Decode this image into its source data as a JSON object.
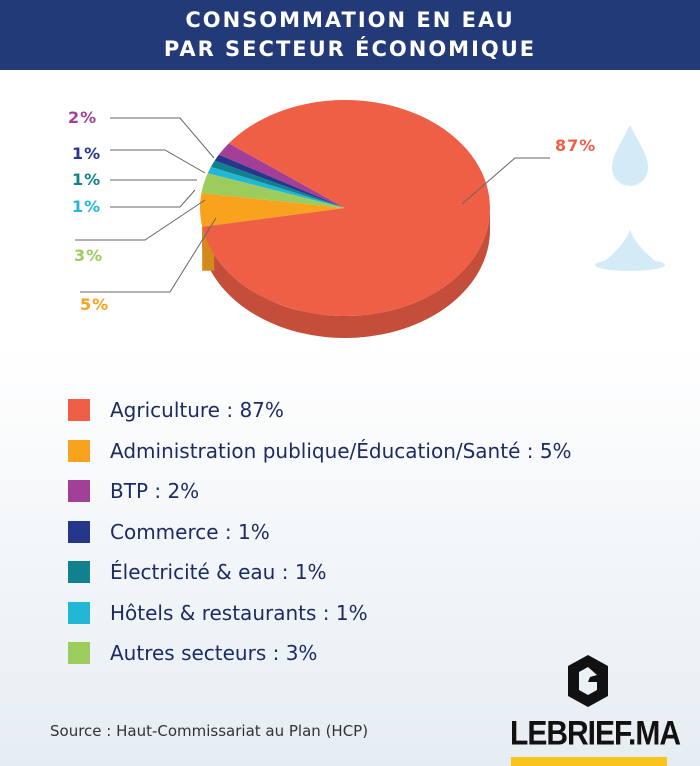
{
  "title": [
    "CONSOMMATION EN EAU",
    "PAR SECTEUR ÉCONOMIQUE"
  ],
  "chart_data": {
    "type": "pie",
    "title": "CONSOMMATION EN EAU PAR SECTEUR ÉCONOMIQUE",
    "slices": [
      {
        "name": "Agriculture",
        "value": 87,
        "label": "87%",
        "color": "#ef5f45",
        "legend": "Agriculture : 87%"
      },
      {
        "name": "Administration publique/Éducation/Santé",
        "value": 5,
        "label": "5%",
        "color": "#f9a21e",
        "legend": "Administration publique/Éducation/Santé : 5%"
      },
      {
        "name": "BTP",
        "value": 2,
        "label": "2%",
        "color": "#a33f97",
        "legend": "BTP : 2%"
      },
      {
        "name": "Commerce",
        "value": 1,
        "label": "1%",
        "color": "#24378a",
        "legend": "Commerce : 1%"
      },
      {
        "name": "Électricité & eau",
        "value": 1,
        "label": "1%",
        "color": "#11808f",
        "legend": "Électricité & eau : 1%"
      },
      {
        "name": "Hôtels & restaurants",
        "value": 1,
        "label": "1%",
        "color": "#22b7d4",
        "legend": "Hôtels & restaurants : 1%"
      },
      {
        "name": "Autres secteurs",
        "value": 3,
        "label": "3%",
        "color": "#9ccc5c",
        "legend": "Autres secteurs : 3%"
      }
    ]
  },
  "source": "Source : Haut-Commissariat au Plan (HCP)",
  "logo": "LEBRIEF.MA"
}
